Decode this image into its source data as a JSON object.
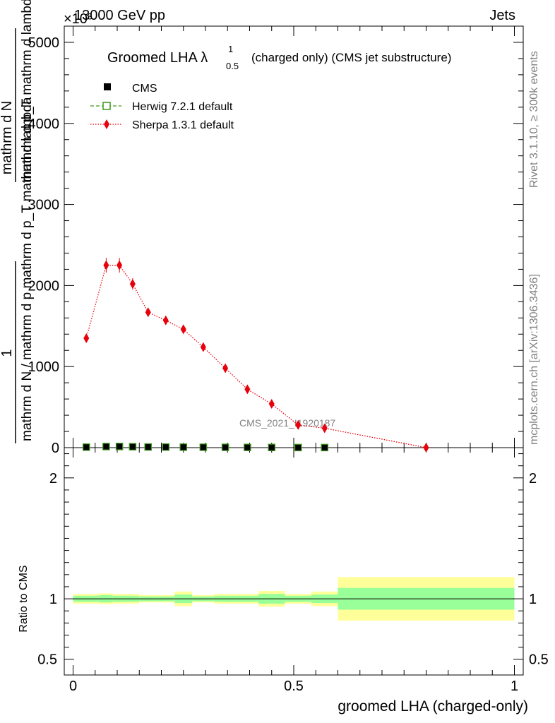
{
  "header": {
    "left": "13000 GeV pp",
    "right": "Jets",
    "exponent": "×10³"
  },
  "title": {
    "main": "Groomed LHA λ",
    "sup": "1",
    "sub": "0.5",
    "rest": "(charged only) (CMS jet substructure)"
  },
  "side_labels": {
    "rivet": "Rivet 3.1.10, ≥ 300k events",
    "mcplots": "mcplots.cern.ch [arXiv:1306.3436]"
  },
  "watermark": "CMS_2021_I1920187",
  "y_label_main": {
    "line1": "1",
    "line1_den": "mathrm d N / mathrm d p mathrm d p_T mathrm d lambda",
    "line2": "mathrm d N",
    "line2_den": "mathrm d p_T mathrm d lambda"
  },
  "y_label_ratio": "Ratio to CMS",
  "x_label": "groomed LHA (charged-only)",
  "legend": {
    "position": "top-left",
    "items": [
      {
        "label": "CMS",
        "color": "#000000",
        "marker": "filled-square"
      },
      {
        "label": "Herwig 7.2.1 default",
        "color": "#3a9a1a",
        "marker": "open-square",
        "line": "dashed"
      },
      {
        "label": "Sherpa 1.3.1 default",
        "color": "#e8000b",
        "marker": "diamond",
        "line": "dotted"
      }
    ]
  },
  "chart_data": {
    "type": "line",
    "xlim": [
      -0.02,
      1.02
    ],
    "ylim_main": [
      0,
      5200
    ],
    "ylim_ratio": [
      0.37,
      2.25
    ],
    "x_ticks": [
      "0",
      "0.5",
      "1"
    ],
    "x_tick_values": [
      0,
      0.5,
      1
    ],
    "y_ticks_main": [
      "0",
      "1000",
      "2000",
      "3000",
      "4000",
      "5000"
    ],
    "y_tick_values_main": [
      0,
      1000,
      2000,
      3000,
      4000,
      5000
    ],
    "y_ticks_ratio": [
      "0.5",
      "1",
      "2"
    ],
    "y_tick_values_ratio": [
      0.5,
      1,
      2
    ],
    "grid": false,
    "bin_edges": [
      0,
      0.06,
      0.09,
      0.12,
      0.15,
      0.19,
      0.23,
      0.27,
      0.32,
      0.37,
      0.42,
      0.48,
      0.54,
      0.6,
      1.0
    ],
    "x": [
      0.03,
      0.075,
      0.105,
      0.135,
      0.17,
      0.21,
      0.25,
      0.295,
      0.345,
      0.395,
      0.45,
      0.51,
      0.57,
      0.8
    ],
    "series": [
      {
        "name": "CMS",
        "color": "#000000",
        "values": [
          6,
          13,
          14,
          11,
          8,
          7,
          6,
          5,
          4,
          3,
          2,
          1,
          1,
          0
        ]
      },
      {
        "name": "Herwig 7.2.1 default",
        "color": "#3a9a1a",
        "values": [
          6,
          13,
          14,
          11,
          8,
          7,
          6,
          5,
          4,
          3,
          2,
          1,
          1,
          0
        ]
      },
      {
        "name": "Sherpa 1.3.1 default",
        "color": "#e8000b",
        "values": [
          1350,
          2250,
          2250,
          2020,
          1670,
          1570,
          1460,
          1240,
          980,
          720,
          540,
          280,
          240,
          0
        ],
        "errors": [
          50,
          90,
          90,
          70,
          50,
          45,
          45,
          45,
          40,
          30,
          25,
          20,
          20,
          5
        ]
      }
    ],
    "ratio_bands": {
      "green_half_width": [
        0.025,
        0.03,
        0.025,
        0.025,
        0.02,
        0.02,
        0.035,
        0.02,
        0.025,
        0.025,
        0.04,
        0.025,
        0.035,
        0.09
      ],
      "yellow_half_width": [
        0.04,
        0.045,
        0.04,
        0.04,
        0.03,
        0.03,
        0.06,
        0.03,
        0.04,
        0.04,
        0.065,
        0.04,
        0.06,
        0.18
      ]
    }
  }
}
